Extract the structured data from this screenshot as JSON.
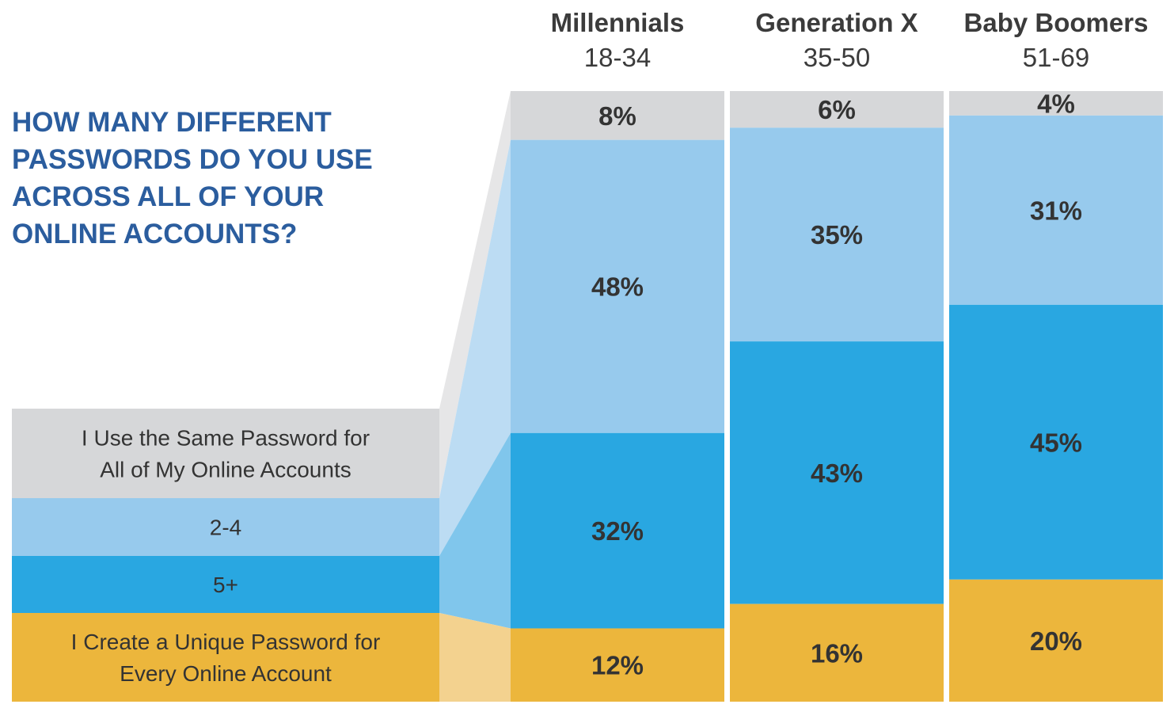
{
  "chart_data": {
    "type": "stacked-bar",
    "title": [
      "HOW MANY DIFFERENT",
      "PASSWORDS DO YOU USE",
      "ACROSS ALL OF YOUR",
      "ONLINE ACCOUNTS?"
    ],
    "categories": [
      {
        "name": "Millennials",
        "ages": "18-34"
      },
      {
        "name": "Generation X",
        "ages": "35-50"
      },
      {
        "name": "Baby Boomers",
        "ages": "51-69"
      }
    ],
    "series": [
      {
        "key": "same",
        "name": [
          "I Use the Same Password for",
          "All of My Online Accounts"
        ],
        "values": [
          8,
          6,
          4
        ],
        "labels": [
          "8%",
          "6%",
          "4%"
        ]
      },
      {
        "key": "two_four",
        "name": [
          "2-4"
        ],
        "values": [
          48,
          35,
          31
        ],
        "labels": [
          "48%",
          "35%",
          "31%"
        ]
      },
      {
        "key": "five_plus",
        "name": [
          "5+"
        ],
        "values": [
          32,
          43,
          45
        ],
        "labels": [
          "32%",
          "43%",
          "45%"
        ]
      },
      {
        "key": "unique",
        "name": [
          "I Create a Unique Password for",
          "Every Online Account"
        ],
        "values": [
          12,
          16,
          20
        ],
        "labels": [
          "12%",
          "16%",
          "20%"
        ]
      }
    ],
    "ylim": [
      0,
      100
    ],
    "colors": {
      "same": "#d6d7d9",
      "two_four": "#97caed",
      "five_plus": "#29a7e1",
      "unique": "#ecb63c",
      "title": "#2b5d9e",
      "text": "#333333"
    }
  }
}
